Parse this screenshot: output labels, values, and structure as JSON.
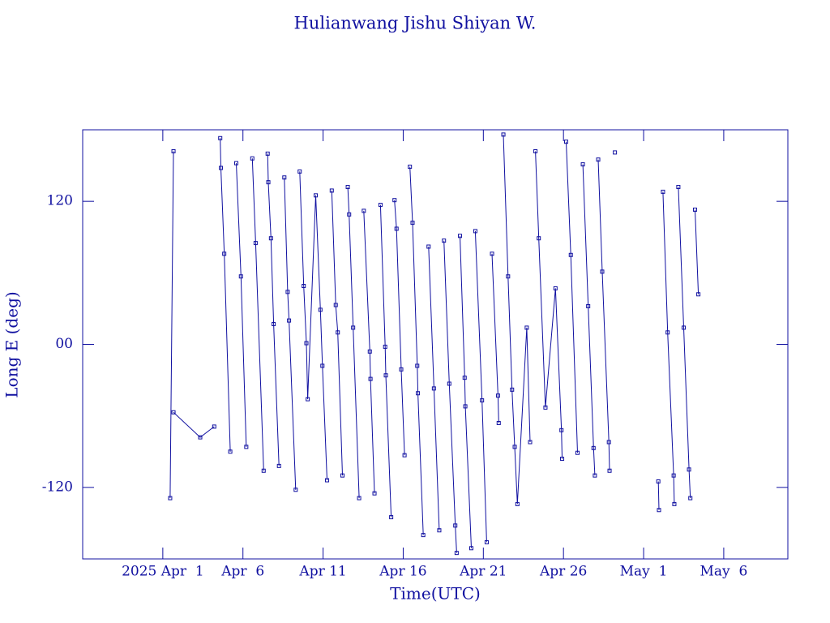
{
  "chart_data": {
    "type": "line",
    "title": "Hulianwang Jishu Shiyan W.",
    "x_label": "Time(UTC)",
    "y_label": "Long E (deg)",
    "color": "#1010a0",
    "xlim": [
      "2025-03-27",
      "2025-05-10"
    ],
    "xticks": [
      {
        "value": "2025-04-01",
        "label": "2025 Apr  1"
      },
      {
        "value": "2025-04-06",
        "label": "Apr  6"
      },
      {
        "value": "2025-04-11",
        "label": "Apr 11"
      },
      {
        "value": "2025-04-16",
        "label": "Apr 16"
      },
      {
        "value": "2025-04-21",
        "label": "Apr 21"
      },
      {
        "value": "2025-04-26",
        "label": "Apr 26"
      },
      {
        "value": "2025-05-01",
        "label": "May  1"
      },
      {
        "value": "2025-05-06",
        "label": "May  6"
      }
    ],
    "ylim": [
      -180,
      180
    ],
    "yticks": [
      120,
      {
        "value": 0,
        "label": "00"
      },
      -120
    ],
    "x": [
      "2025-04-01T11:00",
      "2025-04-01T16:00",
      null,
      "2025-04-01T16:00",
      "2025-04-03T08:00",
      "2025-04-04T05:00",
      null,
      "2025-04-04T14:00",
      "2025-04-04T15:00",
      "2025-04-04T20:00",
      "2025-04-05T05:00",
      null,
      "2025-04-05T14:00",
      "2025-04-05T21:00",
      "2025-04-06T05:00",
      null,
      "2025-04-06T14:00",
      "2025-04-06T19:00",
      "2025-04-07T07:00",
      null,
      "2025-04-07T13:00",
      "2025-04-07T14:00",
      "2025-04-07T18:00",
      "2025-04-07T22:00",
      "2025-04-08T06:00",
      null,
      "2025-04-08T14:00",
      "2025-04-08T19:00",
      "2025-04-08T21:00",
      "2025-04-09T07:00",
      null,
      "2025-04-09T13:00",
      "2025-04-09T19:00",
      "2025-04-09T23:00",
      "2025-04-10T01:00",
      "2025-04-10T13:00",
      "2025-04-10T20:00",
      "2025-04-10T23:00",
      "2025-04-11T06:00",
      null,
      "2025-04-11T13:00",
      "2025-04-11T19:00",
      "2025-04-11T22:00",
      "2025-04-12T05:00",
      null,
      "2025-04-12T13:00",
      "2025-04-12T15:00",
      "2025-04-12T21:00",
      "2025-04-13T06:00",
      null,
      "2025-04-13T13:00",
      "2025-04-13T22:00",
      "2025-04-13T23:00",
      "2025-04-14T05:00",
      null,
      "2025-04-14T14:00",
      "2025-04-14T21:00",
      "2025-04-14T22:00",
      "2025-04-15T06:00",
      null,
      "2025-04-15T11:00",
      "2025-04-15T14:00",
      "2025-04-15T21:00",
      "2025-04-16T02:00",
      null,
      "2025-04-16T10:00",
      "2025-04-16T14:00",
      "2025-04-16T21:00",
      "2025-04-16T22:00",
      "2025-04-17T06:00",
      null,
      "2025-04-17T14:00",
      "2025-04-17T22:00",
      "2025-04-18T06:00",
      null,
      "2025-04-18T13:00",
      "2025-04-18T21:00",
      "2025-04-19T06:00",
      "2025-04-19T08:00",
      null,
      "2025-04-19T13:00",
      "2025-04-19T20:00",
      "2025-04-19T21:00",
      "2025-04-20T06:00",
      null,
      "2025-04-20T12:00",
      "2025-04-20T22:00",
      "2025-04-21T05:00",
      null,
      "2025-04-21T13:00",
      "2025-04-21T22:00",
      "2025-04-21T23:00",
      null,
      "2025-04-22T06:00",
      "2025-04-22T13:00",
      "2025-04-22T19:00",
      "2025-04-22T23:00",
      "2025-04-23T03:00",
      "2025-04-23T17:00",
      "2025-04-23T22:00",
      null,
      "2025-04-24T06:00",
      "2025-04-24T11:00",
      "2025-04-24T21:00",
      "2025-04-25T12:00",
      "2025-04-25T21:00",
      "2025-04-25T22:00",
      null,
      "2025-04-26T04:00",
      "2025-04-26T11:00",
      "2025-04-26T21:00",
      null,
      "2025-04-27T05:00",
      "2025-04-27T13:00",
      "2025-04-27T21:00",
      "2025-04-27T23:00",
      null,
      "2025-04-28T04:00",
      "2025-04-28T10:00",
      "2025-04-28T20:00",
      "2025-04-28T21:00",
      null,
      "2025-04-29T05:00",
      null,
      "2025-05-01T22:00",
      "2025-05-01T23:00",
      null,
      "2025-05-02T05:00",
      "2025-05-02T12:00",
      "2025-05-02T21:00",
      "2025-05-02T22:00",
      null,
      "2025-05-03T04:00",
      "2025-05-03T12:00",
      "2025-05-03T20:00",
      "2025-05-03T22:00",
      null,
      "2025-05-04T05:00",
      "2025-05-04T10:00"
    ],
    "values": [
      -129,
      162,
      null,
      -57,
      -78,
      -69,
      null,
      173,
      148,
      76,
      -90,
      null,
      152,
      57,
      -86,
      null,
      156,
      85,
      -106,
      null,
      160,
      136,
      89,
      17,
      -102,
      null,
      140,
      44,
      20,
      -122,
      null,
      145,
      49,
      1,
      -46,
      125,
      29,
      -18,
      -114,
      null,
      129,
      33,
      10,
      -110,
      null,
      132,
      109,
      14,
      -129,
      null,
      112,
      -6,
      -29,
      -125,
      null,
      117,
      -2,
      -26,
      -145,
      null,
      121,
      97,
      -21,
      -93,
      null,
      149,
      102,
      -18,
      -41,
      -160,
      null,
      82,
      -37,
      -156,
      null,
      87,
      -33,
      -152,
      -175,
      null,
      91,
      -28,
      -52,
      -171,
      null,
      95,
      -47,
      -166,
      null,
      76,
      -43,
      -66,
      null,
      176,
      57,
      -38,
      -86,
      -134,
      14,
      -82,
      null,
      162,
      89,
      -53,
      47,
      -72,
      -96,
      null,
      170,
      75,
      -91,
      null,
      151,
      32,
      -87,
      -110,
      null,
      155,
      61,
      -82,
      -106,
      null,
      161,
      null,
      -115,
      -139,
      null,
      128,
      10,
      -110,
      -134,
      null,
      132,
      14,
      -105,
      -129,
      null,
      113,
      42
    ]
  }
}
